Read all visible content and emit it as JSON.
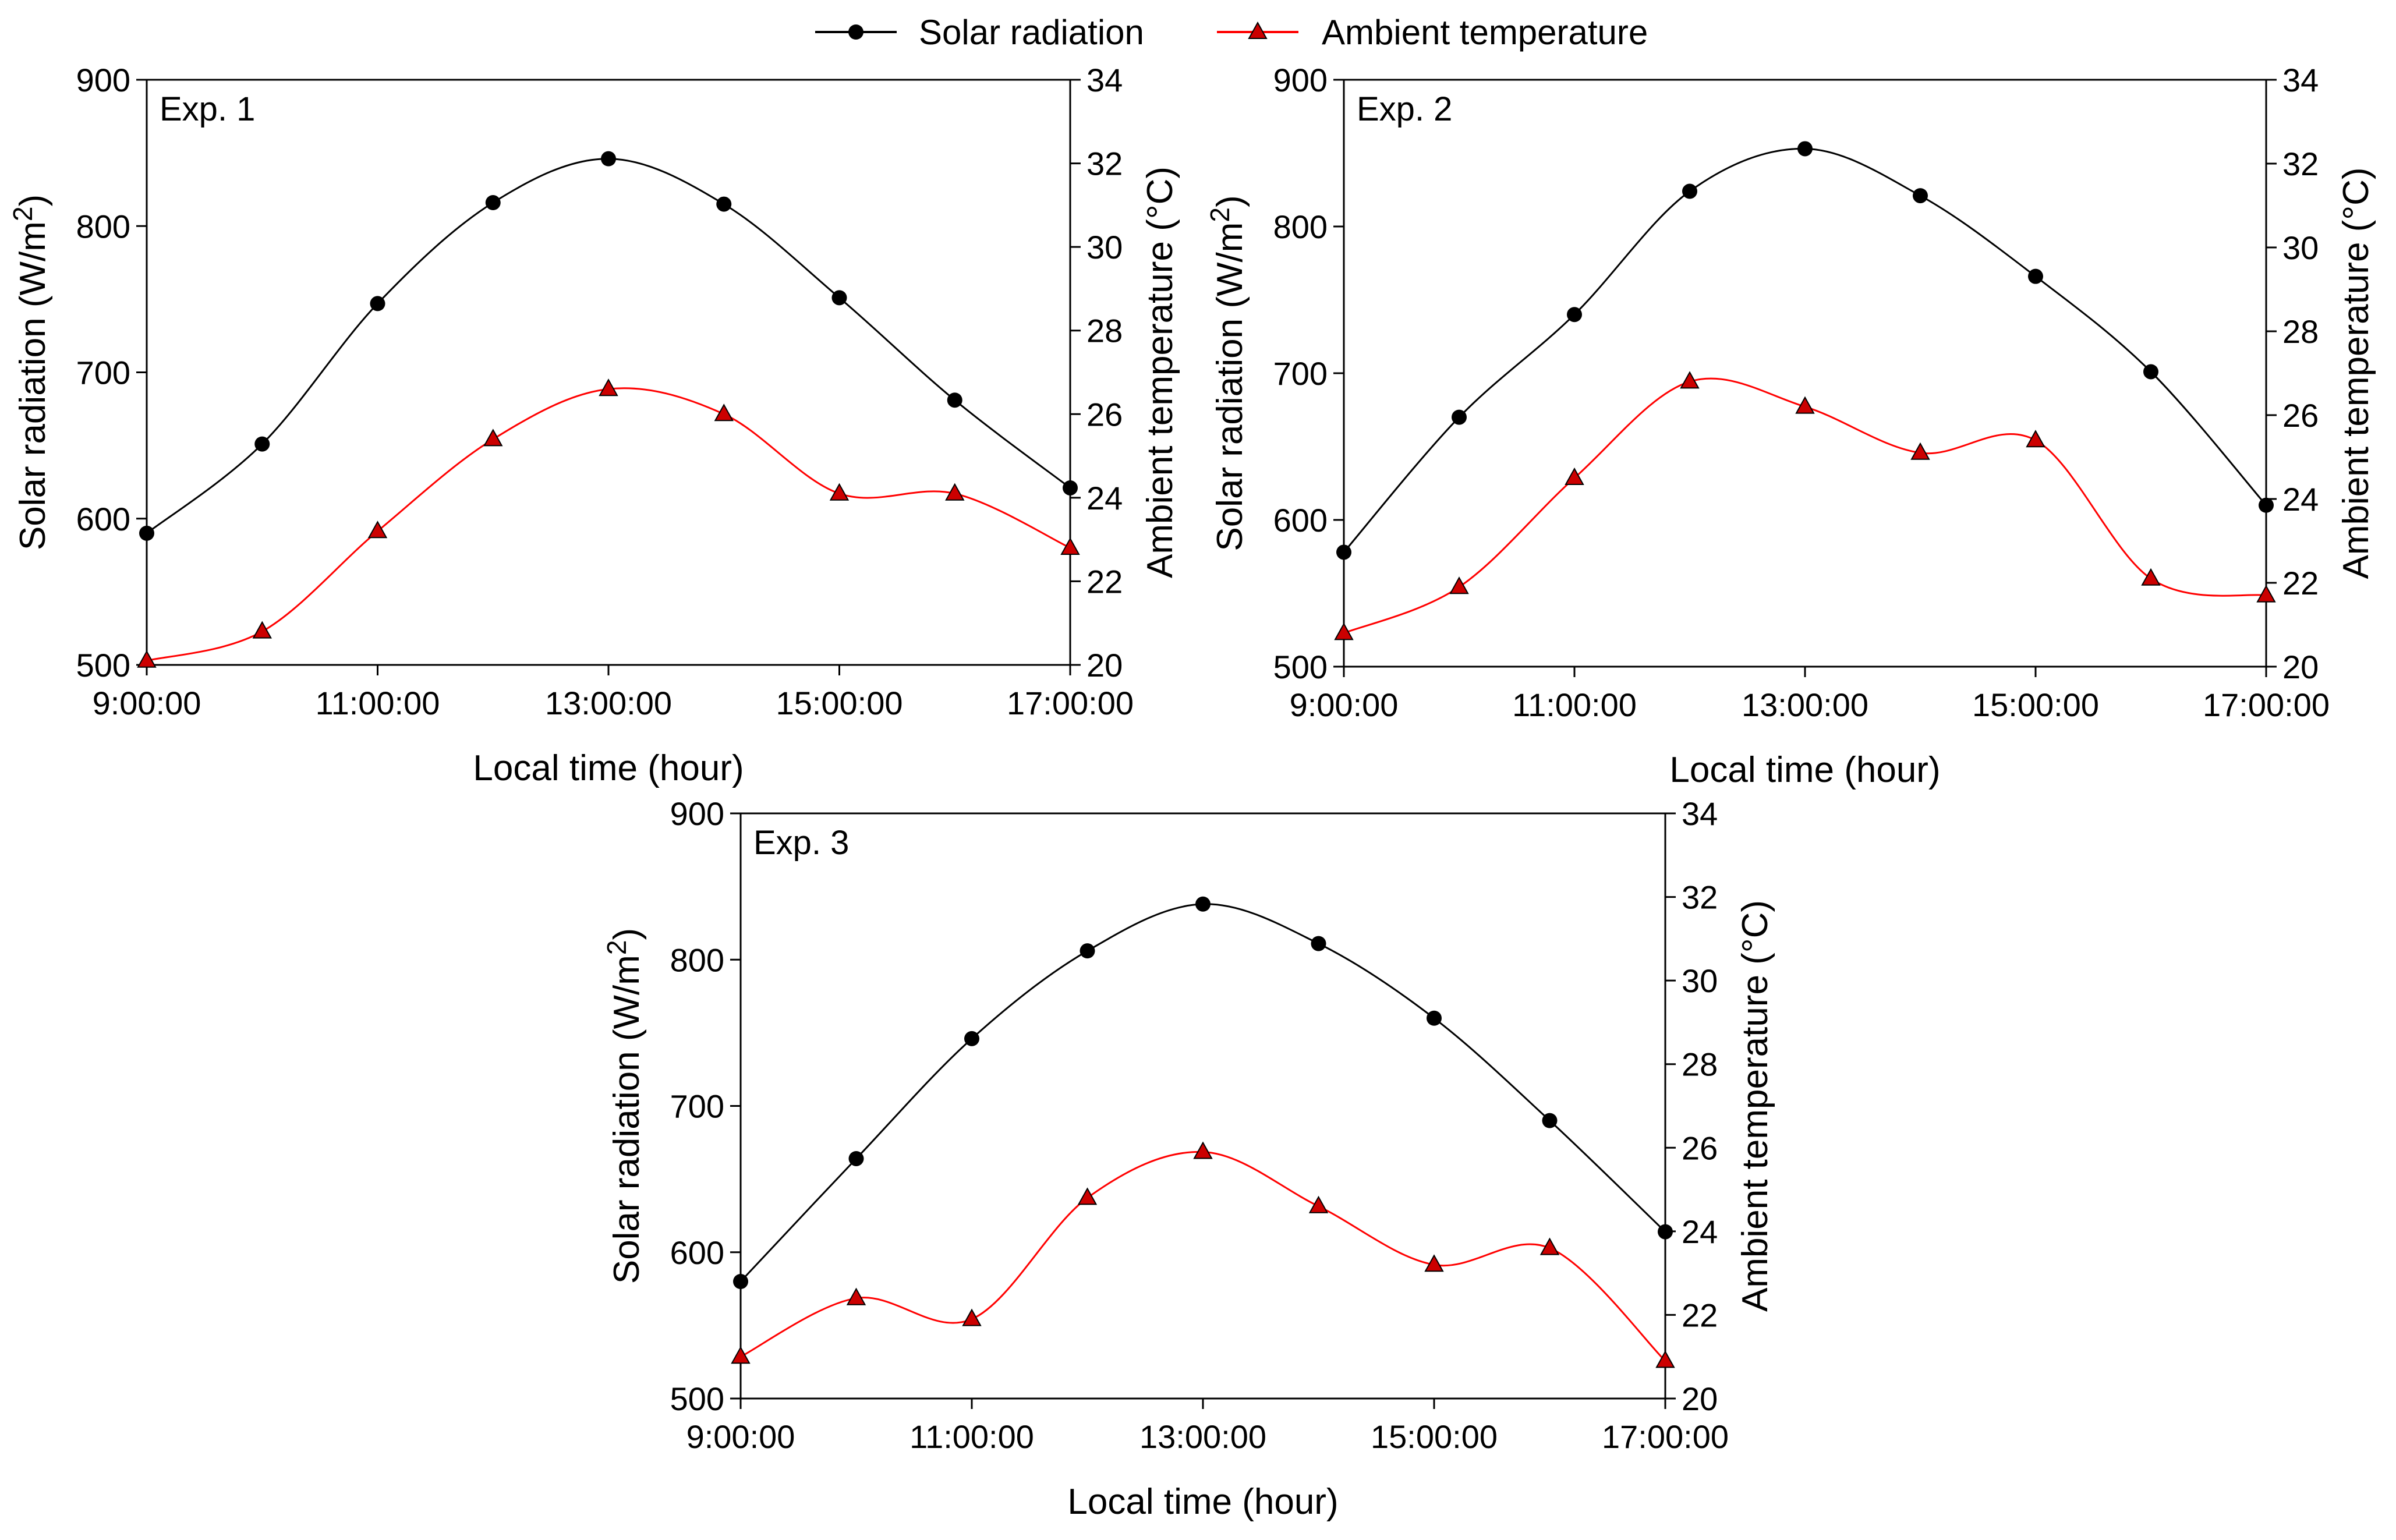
{
  "legend": {
    "solar_label": "Solar radiation",
    "temp_label": "Ambient temperature",
    "solar_color": "#000000",
    "temp_color": "#ff0000",
    "temp_marker_fill": "#cc0000"
  },
  "chart_data": [
    {
      "type": "line",
      "title": "Exp. 1",
      "xlabel": "Local time (hour)",
      "ylabel": "Solar radiation (W/m2)",
      "y2label": "Ambient temperature (°C)",
      "x": [
        9,
        10,
        11,
        12,
        13,
        14,
        15,
        16,
        17
      ],
      "xticks": [
        "9:00:00",
        "11:00:00",
        "13:00:00",
        "15:00:00",
        "17:00:00"
      ],
      "xtick_values": [
        9,
        11,
        13,
        15,
        17
      ],
      "xlim": [
        9,
        17
      ],
      "ylim": [
        500,
        900
      ],
      "yticks": [
        500,
        600,
        700,
        800,
        900
      ],
      "y2lim": [
        20,
        34
      ],
      "y2ticks": [
        20,
        22,
        24,
        26,
        28,
        30,
        32,
        34
      ],
      "series": [
        {
          "name": "Solar radiation",
          "axis": "left",
          "values": [
            590,
            651,
            747,
            816,
            846,
            815,
            751,
            681,
            621
          ]
        },
        {
          "name": "Ambient temperature",
          "axis": "right",
          "values": [
            20.1,
            20.8,
            23.2,
            25.4,
            26.6,
            26.0,
            24.1,
            24.1,
            22.8
          ]
        }
      ]
    },
    {
      "type": "line",
      "title": "Exp. 2",
      "xlabel": "Local time (hour)",
      "ylabel": "Solar radiation (W/m2)",
      "y2label": "Ambient temperature (°C)",
      "x": [
        9,
        10,
        11,
        12,
        13,
        14,
        15,
        16,
        17
      ],
      "xticks": [
        "9:00:00",
        "11:00:00",
        "13:00:00",
        "15:00:00",
        "17:00:00"
      ],
      "xtick_values": [
        9,
        11,
        13,
        15,
        17
      ],
      "xlim": [
        9,
        17
      ],
      "ylim": [
        500,
        900
      ],
      "yticks": [
        500,
        600,
        700,
        800,
        900
      ],
      "y2lim": [
        20,
        34
      ],
      "y2ticks": [
        20,
        22,
        24,
        26,
        28,
        30,
        32,
        34
      ],
      "series": [
        {
          "name": "Solar radiation",
          "axis": "left",
          "values": [
            578,
            670,
            740,
            824,
            853,
            821,
            766,
            701,
            610
          ]
        },
        {
          "name": "Ambient temperature",
          "axis": "right",
          "values": [
            20.8,
            21.9,
            24.5,
            26.8,
            26.2,
            25.1,
            25.4,
            22.1,
            21.7
          ]
        }
      ]
    },
    {
      "type": "line",
      "title": "Exp. 3",
      "xlabel": "Local time (hour)",
      "ylabel": "Solar radiation (W/m2)",
      "y2label": "Ambient temperature (°C)",
      "x": [
        9,
        10,
        11,
        12,
        13,
        14,
        15,
        16,
        17
      ],
      "xticks": [
        "9:00:00",
        "11:00:00",
        "13:00:00",
        "15:00:00",
        "17:00:00"
      ],
      "xtick_values": [
        9,
        11,
        13,
        15,
        17
      ],
      "xlim": [
        9,
        17
      ],
      "ylim": [
        500,
        900
      ],
      "yticks": [
        500,
        600,
        700,
        800,
        900
      ],
      "y2lim": [
        20,
        34
      ],
      "y2ticks": [
        20,
        22,
        24,
        26,
        28,
        30,
        32,
        34
      ],
      "series": [
        {
          "name": "Solar radiation",
          "axis": "left",
          "values": [
            580,
            664,
            746,
            806,
            838,
            811,
            760,
            690,
            614
          ]
        },
        {
          "name": "Ambient temperature",
          "axis": "right",
          "values": [
            21.0,
            22.4,
            21.9,
            24.8,
            25.9,
            24.6,
            23.2,
            23.6,
            20.9
          ]
        }
      ]
    }
  ]
}
